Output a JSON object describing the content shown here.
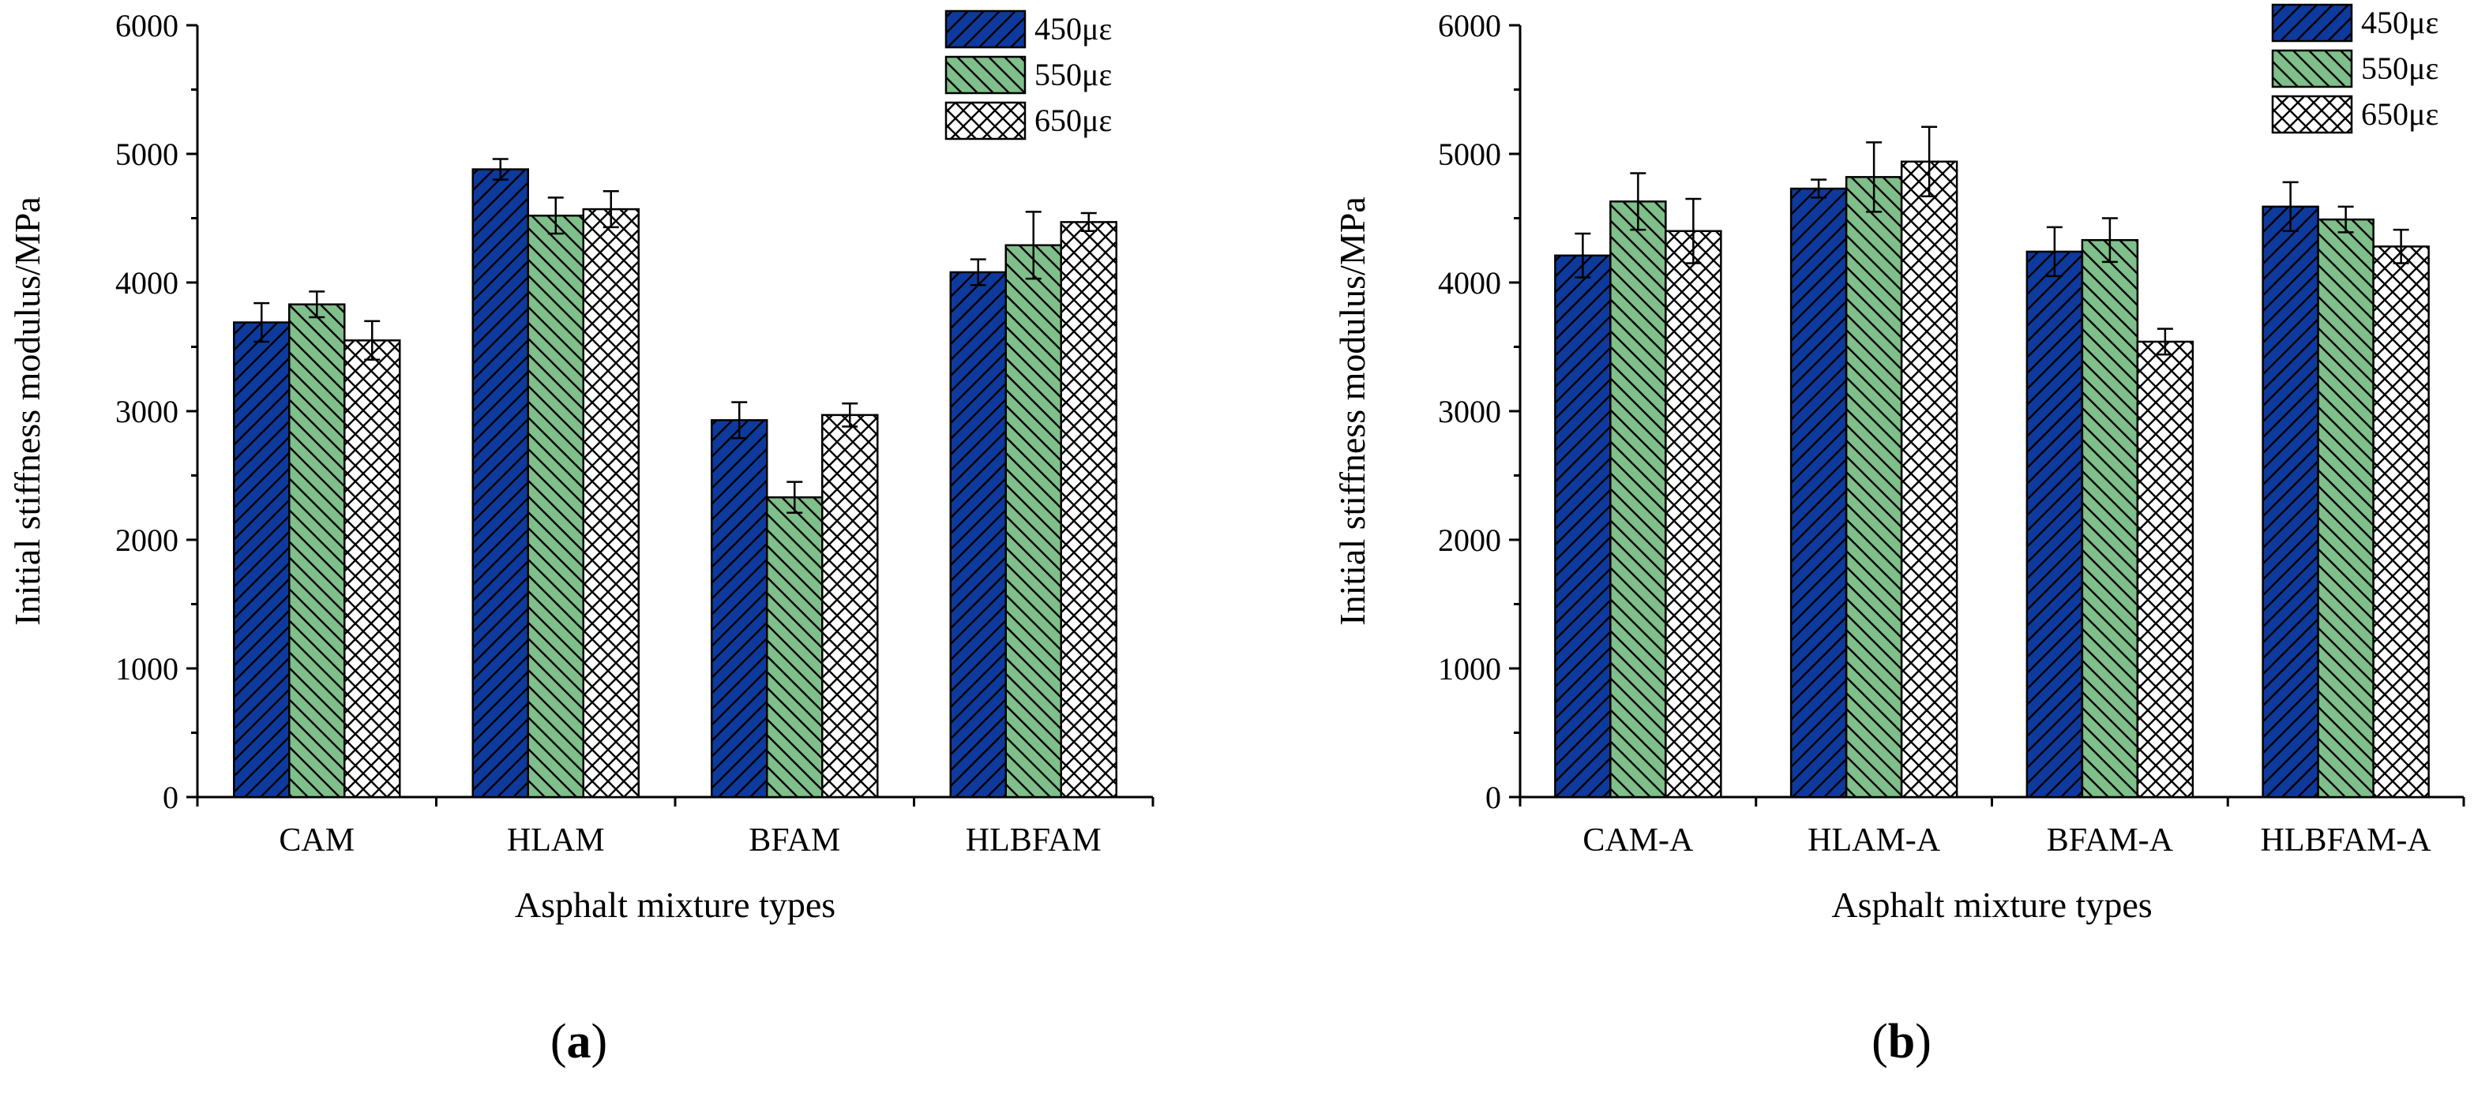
{
  "chart_data": [
    {
      "type": "bar",
      "panel_label": "(a)",
      "title": "",
      "xlabel": "Asphalt mixture types",
      "ylabel": "Initial stiffness modulus/MPa",
      "ylim": [
        0,
        6000
      ],
      "yticks": [
        0,
        1000,
        2000,
        3000,
        4000,
        5000,
        6000
      ],
      "categories": [
        "CAM",
        "HLAM",
        "BFAM",
        "HLBFAM"
      ],
      "legend_position": "top-right",
      "series": [
        {
          "name": "450με",
          "color": "#0d3a9c",
          "pattern": "hatch-forward",
          "values": [
            3690,
            4880,
            2930,
            4080
          ],
          "errors": [
            150,
            80,
            140,
            100
          ]
        },
        {
          "name": "550με",
          "color": "#7fbf8a",
          "pattern": "hatch-backward",
          "values": [
            3830,
            4520,
            2330,
            4290
          ],
          "errors": [
            100,
            140,
            120,
            260
          ]
        },
        {
          "name": "650με",
          "color": "#ffffff",
          "pattern": "crosshatch",
          "values": [
            3550,
            4570,
            2970,
            4470
          ],
          "errors": [
            150,
            140,
            90,
            70
          ]
        }
      ]
    },
    {
      "type": "bar",
      "panel_label": "(b)",
      "title": "",
      "xlabel": "Asphalt mixture types",
      "ylabel": "Initial stiffness modulus/MPa",
      "ylim": [
        0,
        6000
      ],
      "yticks": [
        0,
        1000,
        2000,
        3000,
        4000,
        5000,
        6000
      ],
      "categories": [
        "CAM-A",
        "HLAM-A",
        "BFAM-A",
        "HLBFAM-A"
      ],
      "legend_position": "top-right",
      "series": [
        {
          "name": "450με",
          "color": "#0d3a9c",
          "pattern": "hatch-forward",
          "values": [
            4210,
            4730,
            4240,
            4590
          ],
          "errors": [
            170,
            70,
            190,
            190
          ]
        },
        {
          "name": "550με",
          "color": "#7fbf8a",
          "pattern": "hatch-backward",
          "values": [
            4630,
            4820,
            4330,
            4490
          ],
          "errors": [
            220,
            270,
            170,
            100
          ]
        },
        {
          "name": "650με",
          "color": "#ffffff",
          "pattern": "crosshatch",
          "values": [
            4400,
            4940,
            3540,
            4280
          ],
          "errors": [
            250,
            270,
            100,
            130
          ]
        }
      ]
    }
  ]
}
